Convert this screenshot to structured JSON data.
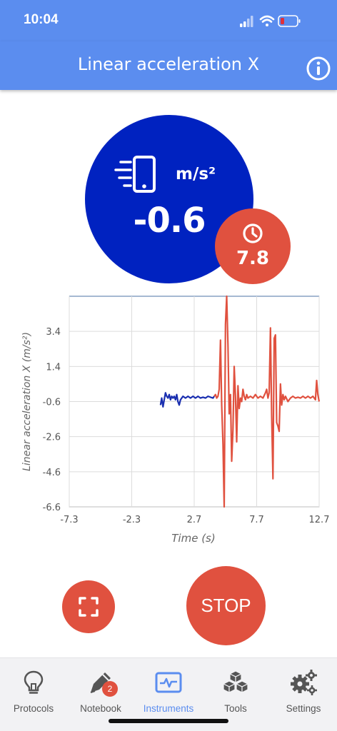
{
  "status_bar": {
    "time": "10:04",
    "icons": [
      "cellular-signal-icon",
      "wifi-icon",
      "battery-low-icon"
    ]
  },
  "header": {
    "title": "Linear acceleration X",
    "info_icon": "info-icon"
  },
  "gauge": {
    "icon": "phone-motion-icon",
    "unit": "m/s²",
    "value": "-0.6",
    "color": "#0022c0"
  },
  "timer": {
    "icon": "clock-icon",
    "value": "7.8",
    "color": "#e0513f"
  },
  "chart_data": {
    "type": "line",
    "ylabel": "Linear acceleration X (m/s²)",
    "xlabel": "Time (s)",
    "xlim": [
      -7.3,
      12.7
    ],
    "ylim": [
      -6.6,
      5.4
    ],
    "x_ticks": [
      "-7.3",
      "-2.3",
      "2.7",
      "7.7",
      "12.7"
    ],
    "y_ticks": [
      "3.4",
      "1.4",
      "-0.6",
      "-2.6",
      "-4.6",
      "-6.6"
    ],
    "grid": true,
    "series": [
      {
        "color": "#1a2fb0",
        "points": [
          [
            0.0,
            -0.8
          ],
          [
            0.1,
            -0.4
          ],
          [
            0.2,
            -0.9
          ],
          [
            0.3,
            -0.5
          ],
          [
            0.4,
            -0.1
          ],
          [
            0.5,
            -0.3
          ],
          [
            0.6,
            -0.4
          ],
          [
            0.7,
            -0.2
          ],
          [
            0.8,
            -0.5
          ],
          [
            0.9,
            -0.3
          ],
          [
            1.0,
            -0.4
          ],
          [
            1.1,
            -0.3
          ],
          [
            1.2,
            -0.5
          ],
          [
            1.3,
            -0.2
          ],
          [
            1.4,
            -0.6
          ],
          [
            1.5,
            -0.8
          ],
          [
            1.6,
            -0.5
          ],
          [
            1.7,
            -0.4
          ],
          [
            1.8,
            -0.3
          ],
          [
            2.0,
            -0.4
          ],
          [
            2.2,
            -0.3
          ],
          [
            2.4,
            -0.4
          ],
          [
            2.6,
            -0.3
          ],
          [
            2.8,
            -0.4
          ],
          [
            3.0,
            -0.3
          ],
          [
            3.2,
            -0.4
          ],
          [
            3.4,
            -0.35
          ],
          [
            3.6,
            -0.4
          ],
          [
            3.8,
            -0.3
          ],
          [
            4.0,
            -0.35
          ],
          [
            4.2,
            -0.4
          ],
          [
            4.3,
            -0.3
          ]
        ]
      },
      {
        "color": "#e0513f",
        "points": [
          [
            4.3,
            -0.3
          ],
          [
            4.4,
            -0.2
          ],
          [
            4.5,
            -0.4
          ],
          [
            4.6,
            -0.3
          ],
          [
            4.7,
            0.1
          ],
          [
            4.8,
            2.9
          ],
          [
            4.9,
            -0.8
          ],
          [
            5.0,
            -3.0
          ],
          [
            5.1,
            -6.6
          ],
          [
            5.2,
            3.8
          ],
          [
            5.3,
            5.4
          ],
          [
            5.4,
            2.6
          ],
          [
            5.5,
            -1.3
          ],
          [
            5.6,
            -0.2
          ],
          [
            5.7,
            -4.0
          ],
          [
            5.8,
            -2.2
          ],
          [
            5.9,
            1.4
          ],
          [
            6.0,
            -0.3
          ],
          [
            6.1,
            -2.9
          ],
          [
            6.2,
            0.3
          ],
          [
            6.3,
            -1.0
          ],
          [
            6.4,
            -0.4
          ],
          [
            6.5,
            -0.6
          ],
          [
            6.6,
            0.1
          ],
          [
            6.7,
            -0.3
          ],
          [
            6.8,
            -0.5
          ],
          [
            6.9,
            -0.2
          ],
          [
            7.0,
            -0.4
          ],
          [
            7.2,
            -0.3
          ],
          [
            7.4,
            -0.4
          ],
          [
            7.6,
            -0.2
          ],
          [
            7.8,
            -0.4
          ],
          [
            8.0,
            -0.3
          ],
          [
            8.2,
            -0.4
          ],
          [
            8.4,
            -0.1
          ],
          [
            8.5,
            0.1
          ],
          [
            8.6,
            -0.4
          ],
          [
            8.7,
            -0.1
          ],
          [
            8.8,
            3.6
          ],
          [
            8.9,
            -1.4
          ],
          [
            9.0,
            -5.0
          ],
          [
            9.1,
            3.0
          ],
          [
            9.2,
            3.2
          ],
          [
            9.3,
            -1.8
          ],
          [
            9.4,
            -2.0
          ],
          [
            9.5,
            -2.3
          ],
          [
            9.6,
            0.4
          ],
          [
            9.7,
            -0.8
          ],
          [
            9.8,
            -0.2
          ],
          [
            9.9,
            -0.5
          ],
          [
            10.0,
            -0.3
          ],
          [
            10.2,
            -0.6
          ],
          [
            10.4,
            -0.4
          ],
          [
            10.6,
            -0.3
          ],
          [
            10.8,
            -0.4
          ],
          [
            11.0,
            -0.35
          ],
          [
            11.2,
            -0.4
          ],
          [
            11.4,
            -0.3
          ],
          [
            11.6,
            -0.4
          ],
          [
            11.8,
            -0.3
          ],
          [
            12.0,
            -0.4
          ],
          [
            12.2,
            -0.3
          ],
          [
            12.4,
            -0.5
          ],
          [
            12.5,
            0.6
          ],
          [
            12.6,
            -0.2
          ],
          [
            12.7,
            -0.6
          ]
        ]
      }
    ]
  },
  "actions": {
    "fullscreen_icon": "fullscreen-icon",
    "stop_label": "STOP"
  },
  "tabbar": {
    "active_color": "#5b8def",
    "tabs": [
      {
        "label": "Protocols",
        "icon": "lightbulb-icon"
      },
      {
        "label": "Notebook",
        "icon": "pen-icon",
        "badge": "2"
      },
      {
        "label": "Instruments",
        "icon": "waveform-icon",
        "active": true
      },
      {
        "label": "Tools",
        "icon": "cubes-icon"
      },
      {
        "label": "Settings",
        "icon": "gears-icon"
      }
    ]
  }
}
